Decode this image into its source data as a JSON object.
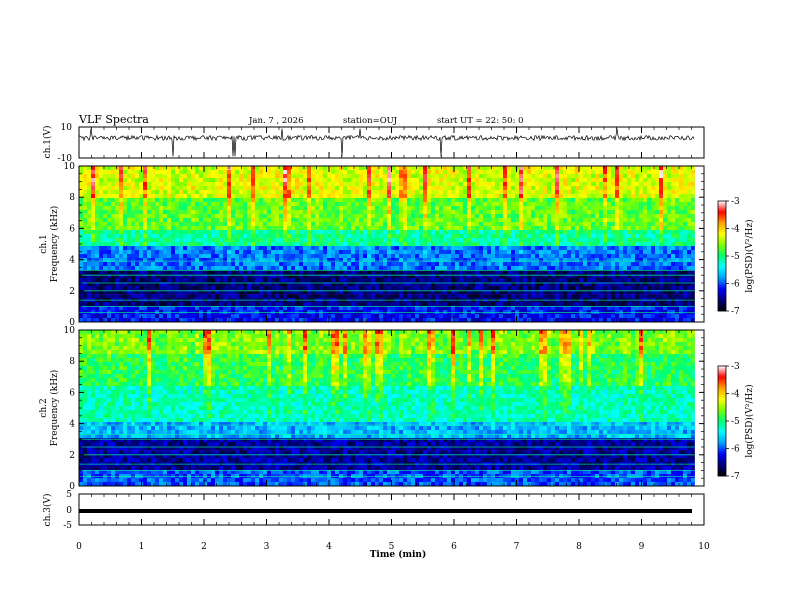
{
  "header": {
    "title": "VLF Spectra",
    "date": "Jan. 7 , 2026",
    "station": "station=OUJ",
    "start": "start  UT =  22: 50: 0"
  },
  "chart_data": {
    "type": "heatmap",
    "x": {
      "label": "Time (min)",
      "range": [
        0,
        10
      ],
      "ticks": [
        "0",
        "1",
        "2",
        "3",
        "4",
        "5",
        "6",
        "7",
        "8",
        "9",
        "10"
      ],
      "data_end_min": 9.85
    },
    "panels": [
      {
        "id": "ch1_waveform",
        "type": "line",
        "ylabel": "ch.1(V)",
        "yticks": [
          "10",
          "-10"
        ],
        "ylim": [
          -10,
          10
        ],
        "note": "noisy waveform near +3 V with occasional spikes"
      },
      {
        "id": "ch1_spectrogram",
        "type": "heatmap",
        "ylabel": "ch.1\nFrequency (kHz)",
        "ylabel_lines": [
          "ch.1",
          "Frequency (kHz)"
        ],
        "yticks": [
          "0",
          "2",
          "4",
          "6",
          "8",
          "10"
        ],
        "ylim": [
          0,
          10
        ],
        "bands": [
          {
            "freq_khz": [
              0,
              1.0
            ],
            "level": -6.2
          },
          {
            "freq_khz": [
              1.0,
              3.3
            ],
            "level": -6.6
          },
          {
            "freq_khz": [
              3.3,
              4.8
            ],
            "level": -5.9
          },
          {
            "freq_khz": [
              4.8,
              6.0
            ],
            "level": -5.1
          },
          {
            "freq_khz": [
              6.0,
              8.0
            ],
            "level": -4.7
          },
          {
            "freq_khz": [
              8.0,
              10.0
            ],
            "level": -4.3
          }
        ]
      },
      {
        "id": "ch2_spectrogram",
        "type": "heatmap",
        "ylabel": "ch.2\nFrequency (kHz)",
        "ylabel_lines": [
          "ch.2",
          "Frequency (kHz)"
        ],
        "yticks": [
          "0",
          "2",
          "4",
          "6",
          "8",
          "10"
        ],
        "ylim": [
          0,
          10
        ],
        "bands": [
          {
            "freq_khz": [
              0,
              1.0
            ],
            "level": -6.0
          },
          {
            "freq_khz": [
              1.0,
              3.0
            ],
            "level": -6.5
          },
          {
            "freq_khz": [
              3.0,
              4.0
            ],
            "level": -5.7
          },
          {
            "freq_khz": [
              4.0,
              6.5
            ],
            "level": -5.2
          },
          {
            "freq_khz": [
              6.5,
              8.5
            ],
            "level": -4.9
          },
          {
            "freq_khz": [
              8.5,
              10.0
            ],
            "level": -4.6
          }
        ]
      },
      {
        "id": "ch3_waveform",
        "type": "line",
        "ylabel": "ch.3(V)",
        "yticks": [
          "5",
          "0",
          "-5"
        ],
        "ylim": [
          -5,
          5
        ],
        "note": "flat thick trace near -1 V"
      }
    ],
    "colorbar": {
      "label": "log(PSD)(V²/Hz)",
      "ticks": [
        "-3",
        "-4",
        "-5",
        "-6",
        "-7"
      ],
      "range": [
        -7,
        -3
      ],
      "colors": [
        "#000000",
        "#00007a",
        "#0000ff",
        "#00a0ff",
        "#00ffff",
        "#00ff70",
        "#7aff00",
        "#ffff00",
        "#ffa000",
        "#ff0000",
        "#ffffff"
      ]
    }
  }
}
